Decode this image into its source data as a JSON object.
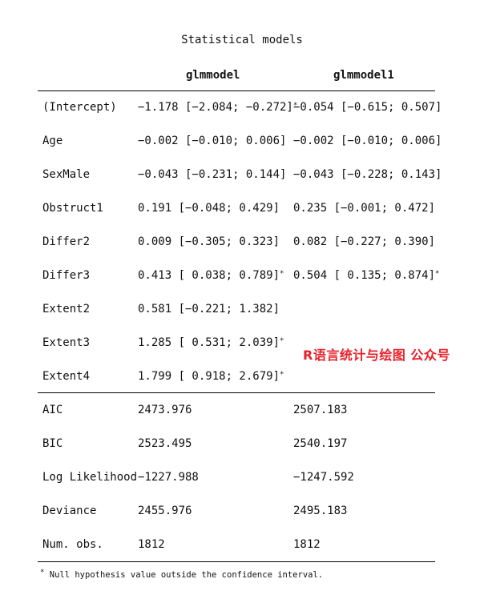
{
  "caption": "Statistical models",
  "headers": [
    "glmmodel",
    "glmmodel1"
  ],
  "coef_rows": [
    {
      "term": "(Intercept)",
      "m1": "−1.178 [−2.084; −0.272]",
      "m1_sig": "*",
      "m2": "−0.054 [−0.615; 0.507]",
      "m2_sig": ""
    },
    {
      "term": "Age",
      "m1": "−0.002 [−0.010; 0.006]",
      "m1_sig": "",
      "m2": "−0.002 [−0.010; 0.006]",
      "m2_sig": ""
    },
    {
      "term": "SexMale",
      "m1": "−0.043 [−0.231; 0.144]",
      "m1_sig": "",
      "m2": "−0.043 [−0.228; 0.143]",
      "m2_sig": ""
    },
    {
      "term": "Obstruct1",
      "m1": "0.191 [−0.048; 0.429]",
      "m1_sig": "",
      "m2": "0.235 [−0.001; 0.472]",
      "m2_sig": ""
    },
    {
      "term": "Differ2",
      "m1": "0.009 [−0.305; 0.323]",
      "m1_sig": "",
      "m2": "0.082 [−0.227; 0.390]",
      "m2_sig": ""
    },
    {
      "term": "Differ3",
      "m1": "0.413 [ 0.038; 0.789]",
      "m1_sig": "*",
      "m2": "0.504 [ 0.135; 0.874]",
      "m2_sig": "*"
    },
    {
      "term": "Extent2",
      "m1": "0.581 [−0.221; 1.382]",
      "m1_sig": "",
      "m2": "",
      "m2_sig": ""
    },
    {
      "term": "Extent3",
      "m1": "1.285 [ 0.531; 2.039]",
      "m1_sig": "*",
      "m2": "",
      "m2_sig": ""
    },
    {
      "term": "Extent4",
      "m1": "1.799 [ 0.918; 2.679]",
      "m1_sig": "*",
      "m2": "",
      "m2_sig": ""
    }
  ],
  "gof_rows": [
    {
      "term": "AIC",
      "m1": "2473.976",
      "m2": "2507.183"
    },
    {
      "term": "BIC",
      "m1": "2523.495",
      "m2": "2540.197"
    },
    {
      "term": "Log Likelihood",
      "m1": "−1227.988",
      "m2": "−1247.592"
    },
    {
      "term": "Deviance",
      "m1": "2455.976",
      "m2": "2495.183"
    },
    {
      "term": "Num. obs.",
      "m1": "1812",
      "m2": "1812"
    }
  ],
  "footnote_mark": "*",
  "footnote": " Null hypothesis value outside the confidence interval.",
  "watermark": "R语言统计与绘图 公众号"
}
